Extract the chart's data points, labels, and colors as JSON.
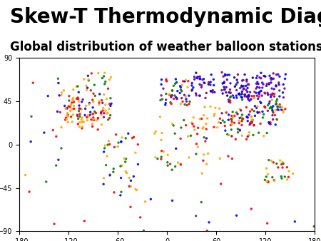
{
  "title": "Skew-T Thermodynamic Diagram",
  "subtitle": "Global distribution of weather balloon stations",
  "title_fontsize": 20,
  "subtitle_fontsize": 12,
  "title_fontweight": "bold",
  "subtitle_fontweight": "bold",
  "xlim": [
    -180,
    180
  ],
  "ylim": [
    -90,
    90
  ],
  "xticks": [
    -180,
    -120,
    -60,
    0,
    60,
    120,
    180
  ],
  "yticks": [
    -90,
    -45,
    0,
    45,
    90
  ],
  "land_facecolor": "#d8d8d8",
  "ocean_color": "#ffffff",
  "coast_linewidth": 0.4,
  "coast_color": "#555555",
  "background_color": "#ffffff",
  "dot_size": 2.5,
  "dot_alpha": 0.9
}
